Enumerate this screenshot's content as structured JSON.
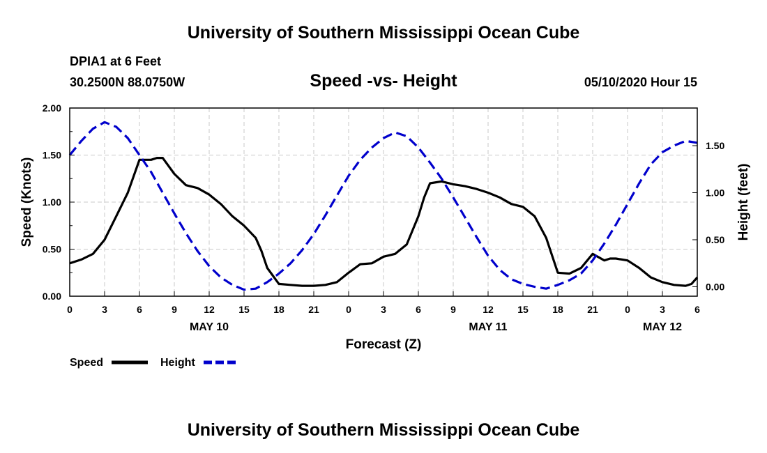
{
  "page": {
    "title_top": "University of Southern Mississippi Ocean Cube",
    "title_bottom": "University of Southern Mississippi Ocean Cube",
    "station": "DPIA1 at 6 Feet",
    "location": "30.2500N 88.0750W",
    "datetime": "05/10/2020 Hour 15"
  },
  "colors": {
    "speed": "#000000",
    "height": "#0000cc",
    "grid": "#c8c8c8"
  },
  "chart_data": {
    "type": "line",
    "title": "Speed -vs- Height",
    "xlabel": "Forecast (Z)",
    "ylabel": "Speed (Knots)",
    "y2label": "Height (feet)",
    "x_unit": "hours since May 10 00Z",
    "xlim": [
      0,
      54
    ],
    "ylim": [
      0,
      2.0
    ],
    "y2lim": [
      -0.1,
      1.9
    ],
    "x_ticks": [
      0,
      3,
      6,
      9,
      12,
      15,
      18,
      21,
      24,
      27,
      30,
      33,
      36,
      39,
      42,
      45,
      48,
      51,
      54
    ],
    "x_tick_labels": [
      "0",
      "3",
      "6",
      "9",
      "12",
      "15",
      "18",
      "21",
      "0",
      "3",
      "6",
      "9",
      "12",
      "15",
      "18",
      "21",
      "0",
      "3",
      "6"
    ],
    "y_ticks": [
      0,
      0.5,
      1.0,
      1.5,
      2.0
    ],
    "y_tick_labels": [
      "0.00",
      "0.50",
      "1.00",
      "1.50",
      "2.00"
    ],
    "y2_ticks": [
      0,
      0.5,
      1.0,
      1.5
    ],
    "y2_tick_labels": [
      "0.00",
      "0.50",
      "1.00",
      "1.50"
    ],
    "date_labels": [
      {
        "x": 12,
        "label": "MAY 10"
      },
      {
        "x": 36,
        "label": "MAY 11"
      },
      {
        "x": 51,
        "label": "MAY 12"
      }
    ],
    "legend": [
      {
        "name": "Speed",
        "style": "solid"
      },
      {
        "name": "Height",
        "style": "dashed"
      }
    ],
    "series": [
      {
        "name": "Speed",
        "axis": "left",
        "x": [
          0,
          1,
          2,
          3,
          4,
          5,
          6,
          6.5,
          7,
          7.5,
          8,
          9,
          10,
          11,
          12,
          13,
          14,
          15,
          16,
          16.5,
          17,
          18,
          19,
          20,
          21,
          22,
          23,
          24,
          25,
          26,
          27,
          28,
          29,
          30,
          30.5,
          31,
          32,
          33,
          34,
          35,
          36,
          37,
          38,
          39,
          40,
          41,
          42,
          43,
          44,
          45,
          46,
          46.5,
          47,
          48,
          49,
          50,
          51,
          52,
          53,
          53.5,
          54
        ],
        "values": [
          0.35,
          0.39,
          0.45,
          0.6,
          0.85,
          1.1,
          1.45,
          1.45,
          1.45,
          1.47,
          1.47,
          1.3,
          1.18,
          1.15,
          1.08,
          0.98,
          0.85,
          0.75,
          0.62,
          0.48,
          0.3,
          0.13,
          0.12,
          0.11,
          0.11,
          0.12,
          0.15,
          0.25,
          0.34,
          0.35,
          0.42,
          0.45,
          0.55,
          0.85,
          1.05,
          1.2,
          1.22,
          1.19,
          1.17,
          1.14,
          1.1,
          1.05,
          0.98,
          0.95,
          0.85,
          0.62,
          0.25,
          0.24,
          0.3,
          0.45,
          0.38,
          0.4,
          0.4,
          0.38,
          0.3,
          0.2,
          0.15,
          0.12,
          0.11,
          0.13,
          0.2
        ]
      },
      {
        "name": "Height",
        "axis": "right",
        "x": [
          0,
          1,
          2,
          3,
          4,
          5,
          6,
          7,
          8,
          9,
          10,
          11,
          12,
          13,
          14,
          15,
          16,
          17,
          18,
          19,
          20,
          21,
          22,
          23,
          24,
          25,
          26,
          27,
          28,
          29,
          30,
          31,
          32,
          33,
          34,
          35,
          36,
          37,
          38,
          39,
          40,
          41,
          42,
          43,
          44,
          45,
          46,
          47,
          48,
          49,
          50,
          51,
          52,
          53,
          54
        ],
        "values": [
          1.4,
          1.55,
          1.68,
          1.75,
          1.7,
          1.58,
          1.4,
          1.22,
          1.0,
          0.78,
          0.57,
          0.38,
          0.22,
          0.1,
          0.02,
          -0.03,
          -0.02,
          0.05,
          0.14,
          0.25,
          0.39,
          0.56,
          0.76,
          0.97,
          1.18,
          1.35,
          1.48,
          1.58,
          1.64,
          1.6,
          1.48,
          1.32,
          1.15,
          0.95,
          0.74,
          0.53,
          0.33,
          0.18,
          0.08,
          0.03,
          0.0,
          -0.02,
          0.02,
          0.07,
          0.14,
          0.28,
          0.46,
          0.66,
          0.88,
          1.1,
          1.3,
          1.43,
          1.5,
          1.55,
          1.53
        ]
      }
    ]
  }
}
